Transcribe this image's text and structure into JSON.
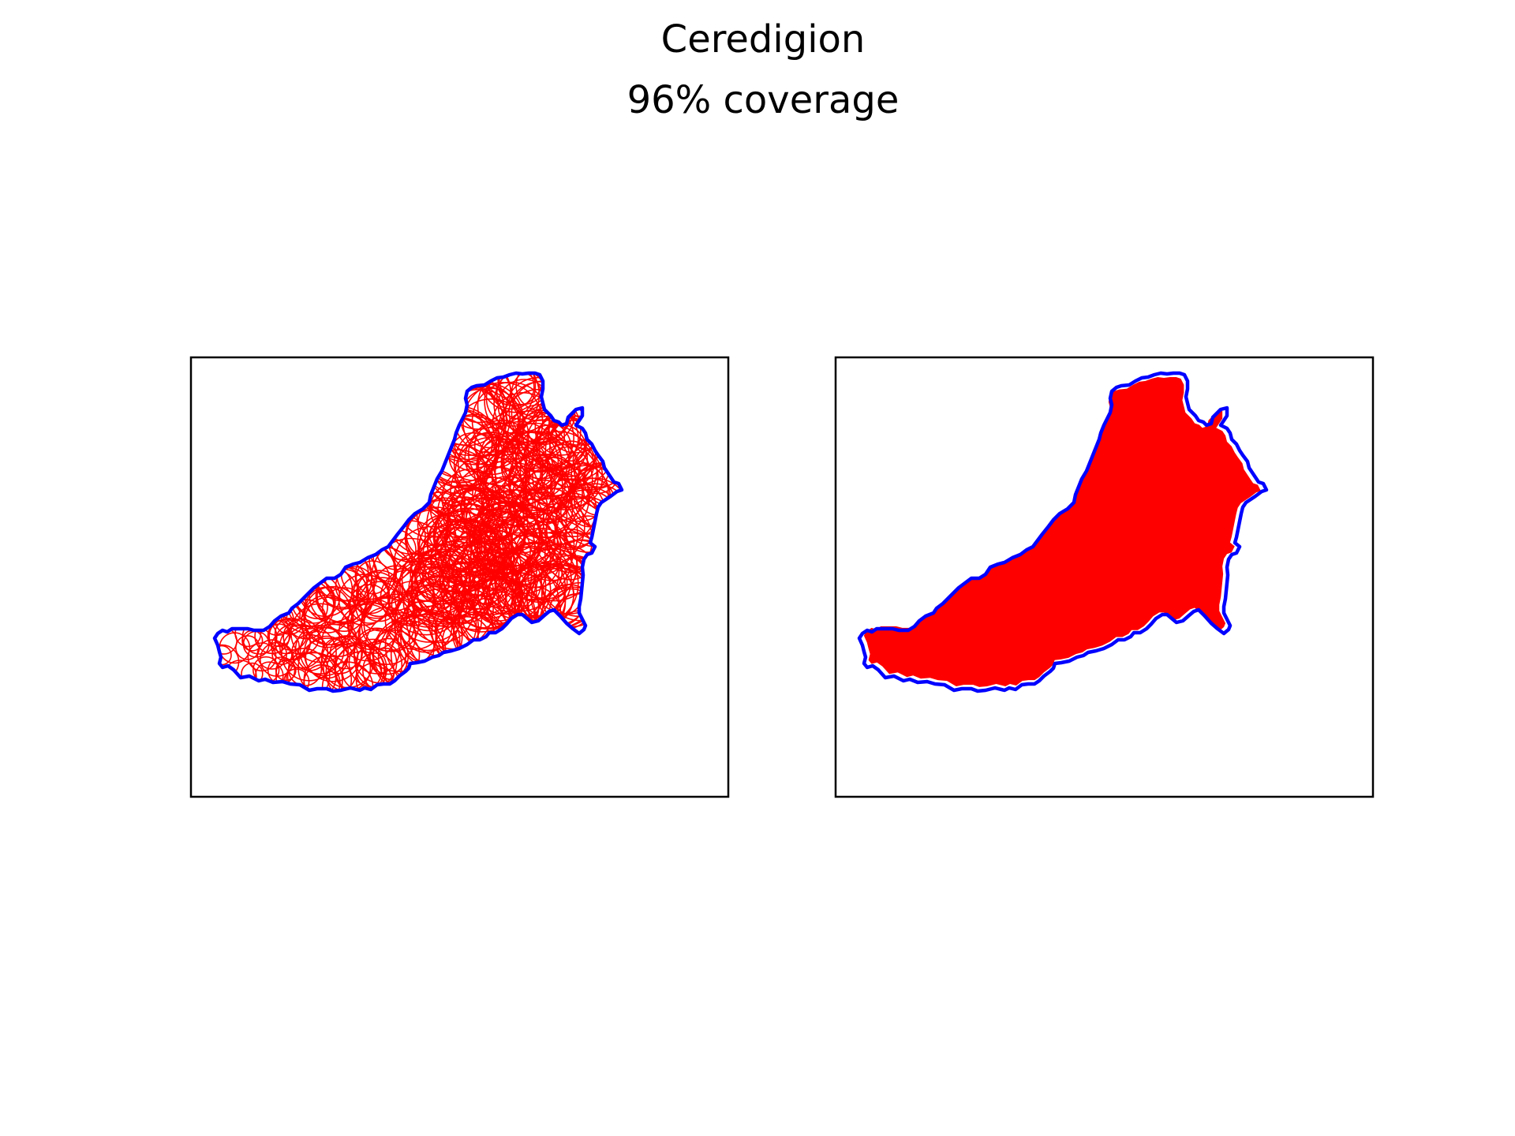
{
  "figure": {
    "title": "Ceredigion",
    "subtitle": "96% coverage"
  },
  "colors": {
    "boundary": "#0000ff",
    "circles": "#ff0000",
    "fill": "#ff0000",
    "frame": "#000000",
    "background": "#ffffff"
  },
  "panels": [
    {
      "name": "circle-cover-panel",
      "style": "circle-outlines"
    },
    {
      "name": "filled-union-panel",
      "style": "filled-region"
    }
  ]
}
